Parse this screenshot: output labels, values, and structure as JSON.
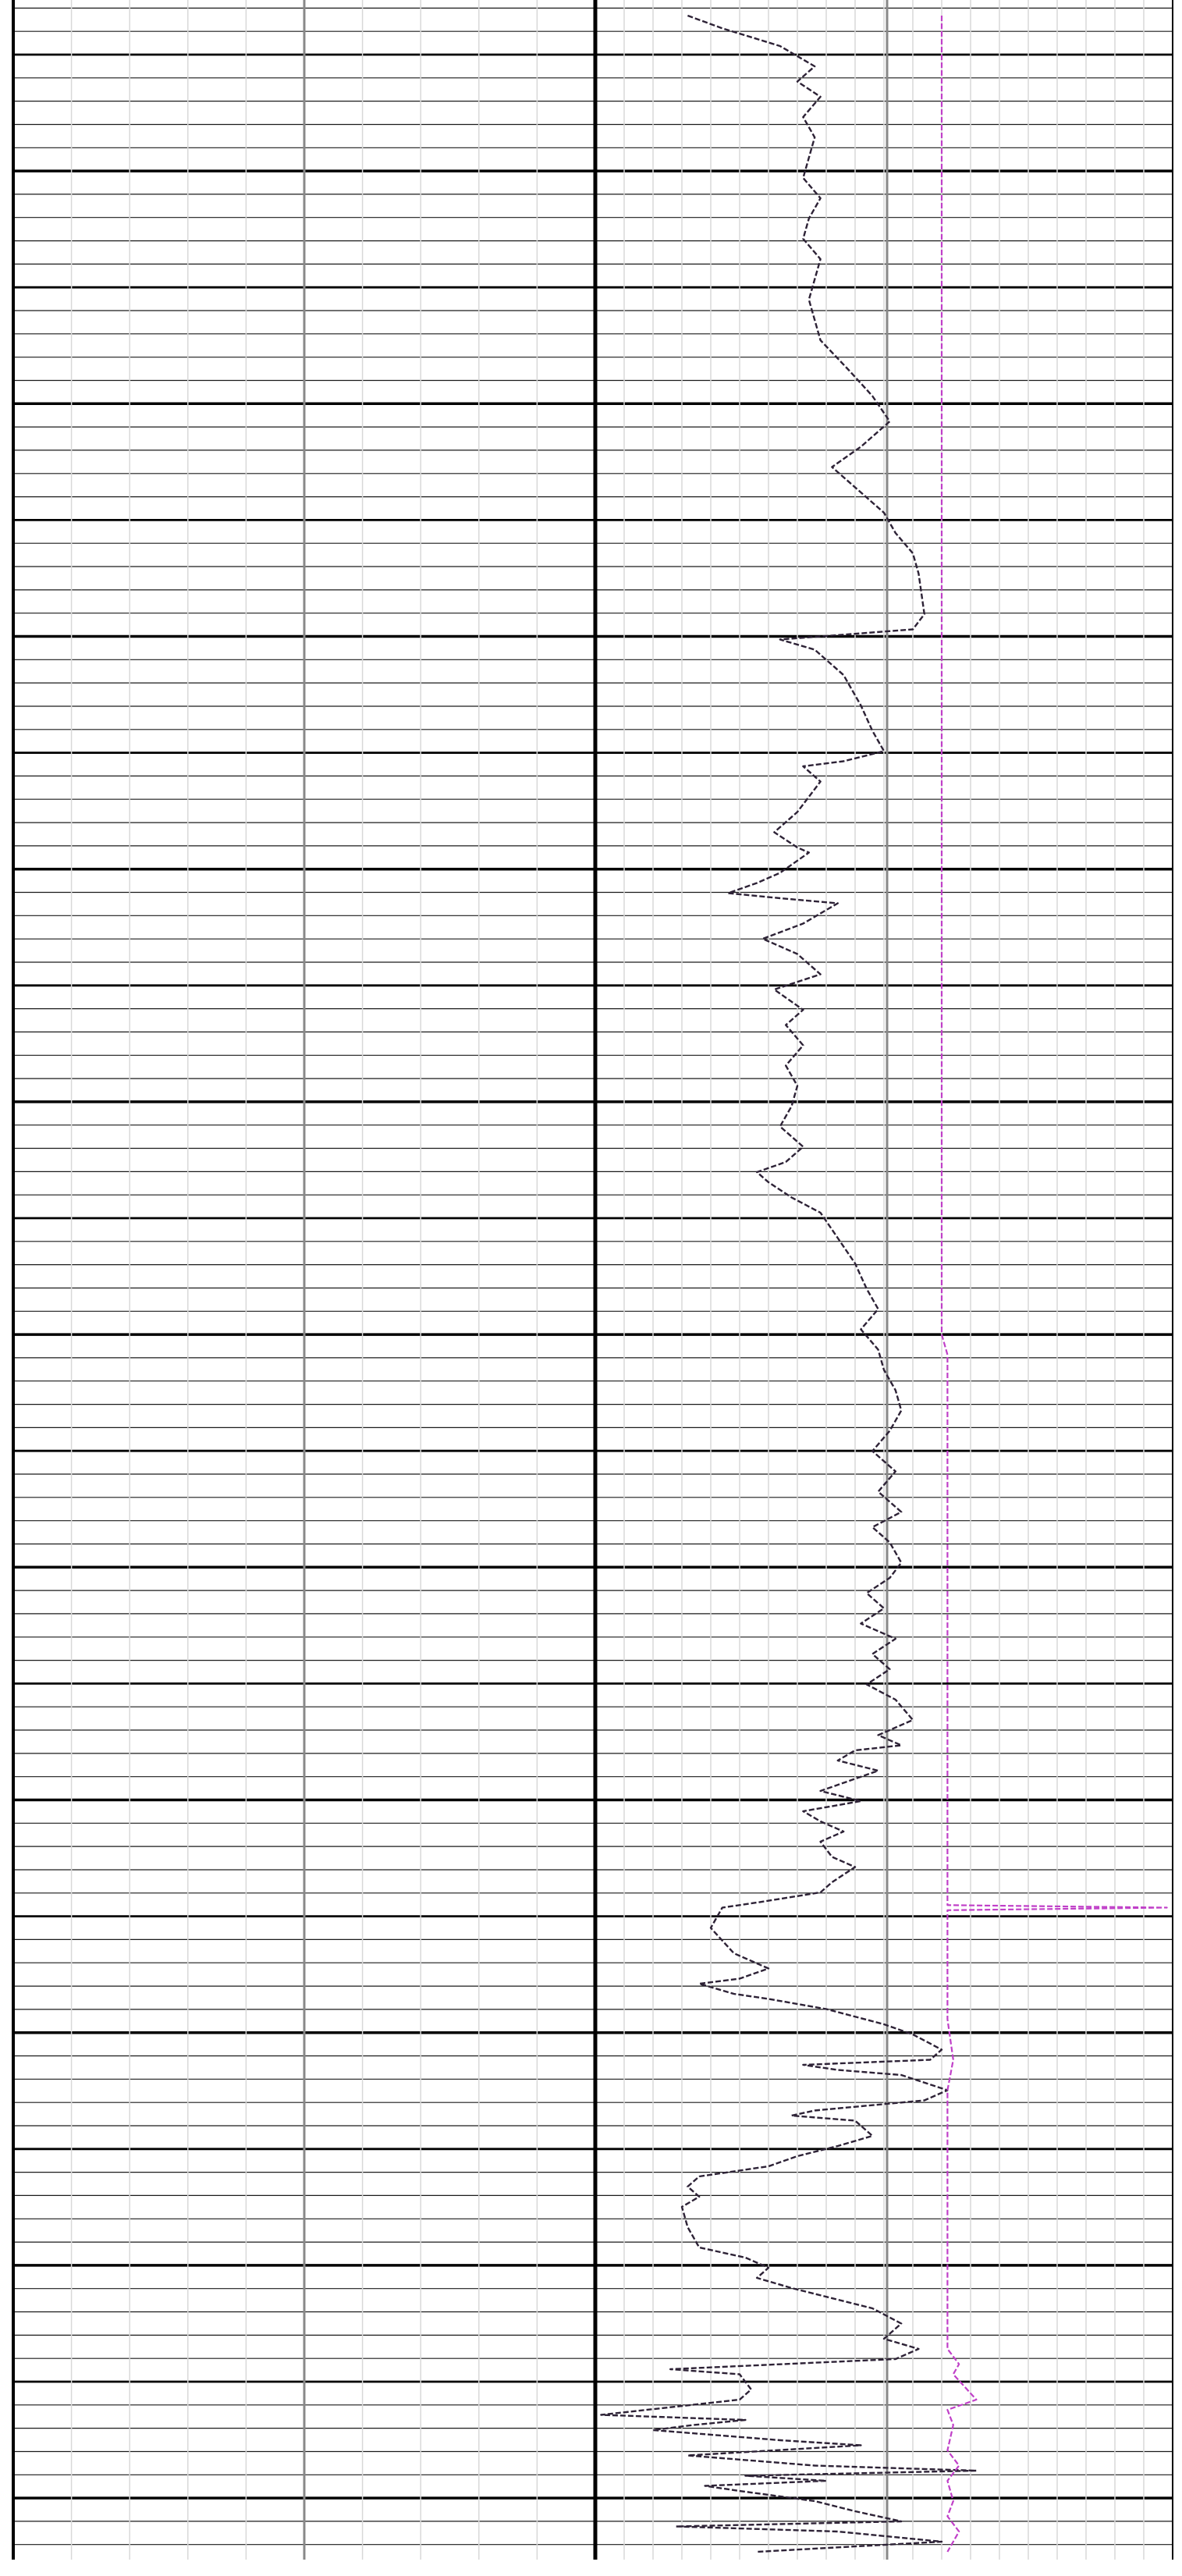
{
  "chart_data": {
    "type": "line",
    "title": "",
    "xlabel": "",
    "ylabel": "",
    "grid": true,
    "tracks": [
      {
        "name": "left-track",
        "columns": 5
      },
      {
        "name": "right-track",
        "columns": 10
      }
    ],
    "depth_range": [
      0,
      1000
    ],
    "x_range": [
      0,
      10
    ],
    "series": [
      {
        "color": "#2d2236",
        "style": "dashed",
        "points": [
          [
            1.6,
            0
          ],
          [
            2.2,
            5
          ],
          [
            3.2,
            12
          ],
          [
            3.8,
            20
          ],
          [
            3.5,
            26
          ],
          [
            3.9,
            32
          ],
          [
            3.6,
            40
          ],
          [
            3.8,
            48
          ],
          [
            3.7,
            56
          ],
          [
            3.6,
            64
          ],
          [
            3.9,
            72
          ],
          [
            3.7,
            80
          ],
          [
            3.6,
            88
          ],
          [
            3.9,
            96
          ],
          [
            3.8,
            104
          ],
          [
            3.7,
            112
          ],
          [
            3.8,
            120
          ],
          [
            3.9,
            128
          ],
          [
            4.4,
            140
          ],
          [
            4.8,
            150
          ],
          [
            5.1,
            160
          ],
          [
            4.6,
            170
          ],
          [
            4.1,
            178
          ],
          [
            4.5,
            186
          ],
          [
            5.0,
            196
          ],
          [
            5.2,
            204
          ],
          [
            5.5,
            212
          ],
          [
            5.6,
            220
          ],
          [
            5.7,
            236
          ],
          [
            5.5,
            242
          ],
          [
            3.2,
            246
          ],
          [
            3.8,
            250
          ],
          [
            4.3,
            260
          ],
          [
            4.6,
            272
          ],
          [
            4.8,
            282
          ],
          [
            5.0,
            290
          ],
          [
            4.3,
            294
          ],
          [
            3.6,
            296
          ],
          [
            3.9,
            302
          ],
          [
            3.5,
            314
          ],
          [
            3.1,
            322
          ],
          [
            3.5,
            328
          ],
          [
            3.7,
            330
          ],
          [
            3.2,
            338
          ],
          [
            2.8,
            342
          ],
          [
            2.3,
            346
          ],
          [
            3.2,
            348
          ],
          [
            4.2,
            350
          ],
          [
            3.6,
            358
          ],
          [
            2.9,
            364
          ],
          [
            3.5,
            370
          ],
          [
            3.9,
            378
          ],
          [
            3.1,
            384
          ],
          [
            3.6,
            392
          ],
          [
            3.3,
            398
          ],
          [
            3.6,
            406
          ],
          [
            3.3,
            414
          ],
          [
            3.5,
            422
          ],
          [
            3.4,
            430
          ],
          [
            3.2,
            438
          ],
          [
            3.6,
            446
          ],
          [
            3.3,
            452
          ],
          [
            2.8,
            456
          ],
          [
            3.0,
            460
          ],
          [
            3.4,
            466
          ],
          [
            3.9,
            472
          ],
          [
            4.2,
            482
          ],
          [
            4.5,
            492
          ],
          [
            4.7,
            502
          ],
          [
            4.9,
            510
          ],
          [
            4.6,
            518
          ],
          [
            4.9,
            526
          ],
          [
            5.0,
            534
          ],
          [
            5.2,
            542
          ],
          [
            5.3,
            550
          ],
          [
            5.1,
            558
          ],
          [
            4.8,
            566
          ],
          [
            5.2,
            574
          ],
          [
            4.9,
            582
          ],
          [
            5.3,
            590
          ],
          [
            4.8,
            596
          ],
          [
            5.1,
            602
          ],
          [
            5.3,
            610
          ],
          [
            5.1,
            616
          ],
          [
            4.7,
            622
          ],
          [
            5.0,
            628
          ],
          [
            4.6,
            634
          ],
          [
            5.2,
            640
          ],
          [
            4.8,
            646
          ],
          [
            5.1,
            652
          ],
          [
            4.7,
            658
          ],
          [
            5.2,
            664
          ],
          [
            5.5,
            672
          ],
          [
            4.9,
            678
          ],
          [
            5.3,
            682
          ],
          [
            4.5,
            684
          ],
          [
            4.2,
            688
          ],
          [
            4.9,
            692
          ],
          [
            4.4,
            696
          ],
          [
            3.9,
            700
          ],
          [
            4.6,
            704
          ],
          [
            3.6,
            708
          ],
          [
            3.9,
            712
          ],
          [
            4.3,
            716
          ],
          [
            3.9,
            720
          ],
          [
            4.1,
            726
          ],
          [
            4.5,
            730
          ],
          [
            4.1,
            736
          ],
          [
            3.9,
            740
          ],
          [
            2.8,
            744
          ],
          [
            2.2,
            746
          ],
          [
            2.0,
            754
          ],
          [
            2.4,
            764
          ],
          [
            3.0,
            770
          ],
          [
            2.5,
            774
          ],
          [
            1.8,
            776
          ],
          [
            2.4,
            780
          ],
          [
            3.0,
            782
          ],
          [
            4.0,
            786
          ],
          [
            5.0,
            792
          ],
          [
            5.5,
            796
          ],
          [
            6.0,
            802
          ],
          [
            5.8,
            806
          ],
          [
            3.6,
            808
          ],
          [
            4.2,
            810
          ],
          [
            5.3,
            812
          ],
          [
            6.1,
            818
          ],
          [
            5.7,
            822
          ],
          [
            3.8,
            826
          ],
          [
            3.4,
            828
          ],
          [
            4.5,
            830
          ],
          [
            4.8,
            836
          ],
          [
            4.2,
            840
          ],
          [
            3.5,
            844
          ],
          [
            3.0,
            848
          ],
          [
            2.4,
            850
          ],
          [
            1.8,
            852
          ],
          [
            1.6,
            856
          ],
          [
            1.8,
            860
          ],
          [
            1.5,
            864
          ],
          [
            1.6,
            872
          ],
          [
            1.8,
            880
          ],
          [
            2.6,
            884
          ],
          [
            3.0,
            888
          ],
          [
            2.8,
            892
          ],
          [
            3.4,
            896
          ],
          [
            4.8,
            904
          ],
          [
            5.3,
            910
          ],
          [
            5.0,
            916
          ],
          [
            5.6,
            920
          ],
          [
            5.2,
            924
          ],
          [
            1.3,
            928
          ],
          [
            2.5,
            930
          ],
          [
            2.7,
            936
          ],
          [
            2.5,
            940
          ],
          [
            0.1,
            946
          ],
          [
            2.6,
            948
          ],
          [
            1.7,
            950
          ],
          [
            1.0,
            952
          ],
          [
            3.2,
            956
          ],
          [
            4.6,
            958
          ],
          [
            1.6,
            962
          ],
          [
            3.8,
            966
          ],
          [
            6.6,
            968
          ],
          [
            2.6,
            970
          ],
          [
            4.0,
            972
          ],
          [
            1.9,
            974
          ],
          [
            2.5,
            976
          ],
          [
            3.8,
            980
          ],
          [
            4.5,
            984
          ],
          [
            5.3,
            988
          ],
          [
            1.4,
            990
          ],
          [
            4.2,
            992
          ],
          [
            6.0,
            996
          ],
          [
            2.8,
            1000
          ]
        ]
      },
      {
        "color": "#c040c8",
        "style": "dashed",
        "points": [
          [
            6.0,
            0
          ],
          [
            6.0,
            100
          ],
          [
            6.0,
            200
          ],
          [
            6.0,
            300
          ],
          [
            6.0,
            400
          ],
          [
            6.0,
            520
          ],
          [
            6.1,
            528
          ],
          [
            6.1,
            640
          ],
          [
            6.1,
            745
          ],
          [
            9.9,
            746
          ],
          [
            6.1,
            747
          ],
          [
            6.1,
            790
          ],
          [
            6.2,
            806
          ],
          [
            6.1,
            818
          ],
          [
            6.1,
            920
          ],
          [
            6.3,
            926
          ],
          [
            6.2,
            930
          ],
          [
            6.6,
            940
          ],
          [
            6.1,
            944
          ],
          [
            6.2,
            950
          ],
          [
            6.1,
            960
          ],
          [
            6.3,
            966
          ],
          [
            6.1,
            972
          ],
          [
            6.2,
            980
          ],
          [
            6.1,
            986
          ],
          [
            6.3,
            992
          ],
          [
            6.1,
            1000
          ]
        ]
      }
    ]
  }
}
